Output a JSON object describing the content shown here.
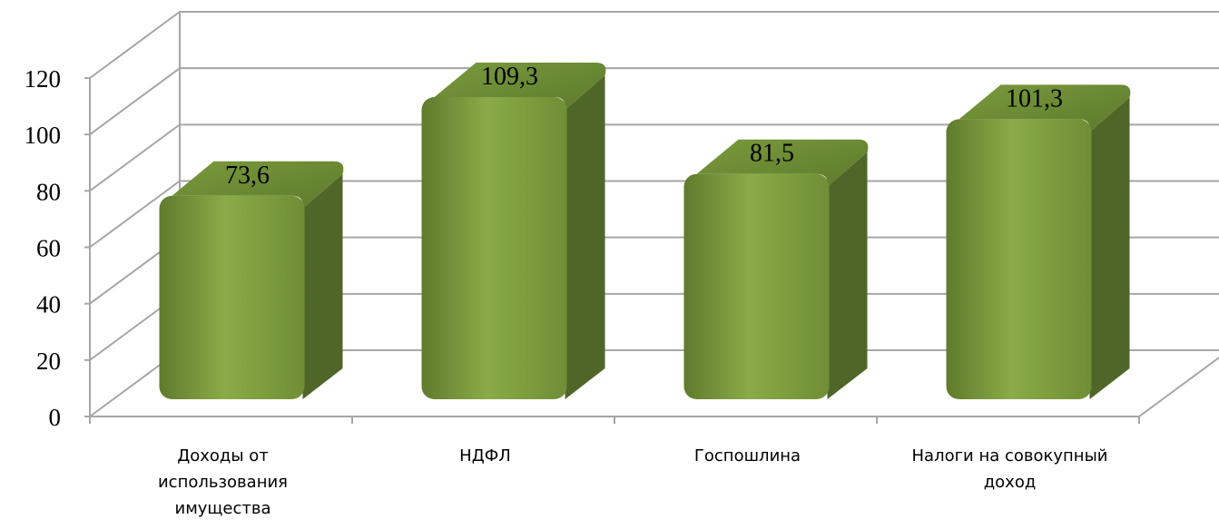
{
  "chart_data": {
    "type": "bar",
    "style": "3d-clustered-column",
    "categories": [
      "Доходы от использования имущества",
      "НДФЛ",
      "Госпошлина",
      "Налоги на совокупный доход"
    ],
    "category_lines": [
      [
        "Доходы от",
        "использования",
        "имущества"
      ],
      [
        "НДФЛ"
      ],
      [
        "Госпошлина"
      ],
      [
        "Налоги на совокупный",
        "доход"
      ]
    ],
    "values": [
      73.6,
      109.3,
      81.5,
      101.3
    ],
    "data_labels": [
      "73,6",
      "109,3",
      "81,5",
      "101,3"
    ],
    "ylim": [
      0,
      120
    ],
    "yticks": [
      0,
      20,
      40,
      60,
      80,
      100,
      120
    ],
    "grid": true,
    "legend": "none",
    "colors": {
      "bar_front": "#7b9a3e",
      "bar_top": "#6a8a32",
      "bar_side": "#4f6628",
      "grid": "#a6a6a6"
    },
    "title": "",
    "xlabel": "",
    "ylabel": ""
  }
}
